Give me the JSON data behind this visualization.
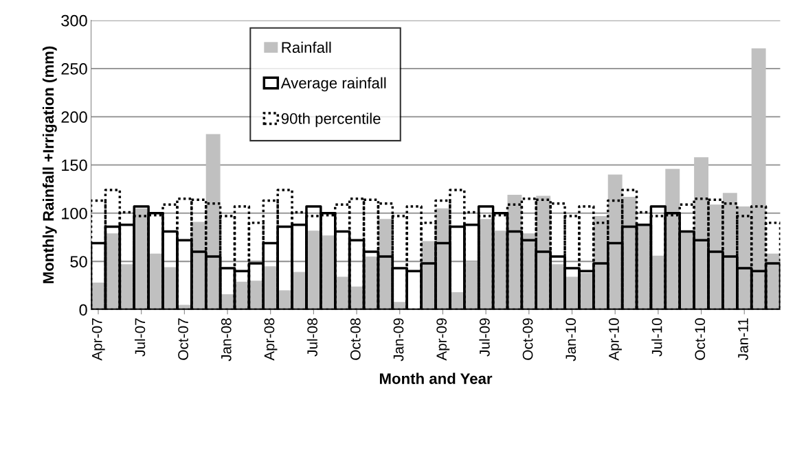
{
  "chart_data": {
    "type": "bar",
    "ylabel": "Monthly Rainfall +Irrigation (mm)",
    "xlabel": "Month and Year",
    "categories": [
      "Apr-07",
      null,
      null,
      "Jul-07",
      null,
      null,
      "Oct-07",
      null,
      null,
      "Jan-08",
      null,
      null,
      "Apr-08",
      null,
      null,
      "Jul-08",
      null,
      null,
      "Oct-08",
      null,
      null,
      "Jan-09",
      null,
      null,
      "Apr-09",
      null,
      null,
      "Jul-09",
      null,
      null,
      "Oct-09",
      null,
      null,
      "Jan-10",
      null,
      null,
      "Apr-10",
      null,
      null,
      "Jul-10",
      null,
      null,
      "Oct-10",
      null,
      null,
      "Jan-11",
      null,
      null
    ],
    "series": [
      {
        "name": "Rainfall",
        "color": "#c0c0c0",
        "values": [
          28,
          79,
          47,
          105,
          58,
          44,
          5,
          91,
          182,
          16,
          29,
          30,
          45,
          20,
          39,
          82,
          77,
          34,
          24,
          55,
          94,
          8,
          0,
          71,
          105,
          18,
          50,
          94,
          82,
          119,
          79,
          118,
          47,
          34,
          38,
          97,
          140,
          117,
          87,
          56,
          146,
          80,
          158,
          109,
          121,
          107,
          271,
          58
        ]
      },
      {
        "name": "Average rainfall",
        "color": "#000000",
        "line_style": "solid",
        "values": [
          69,
          86,
          88,
          107,
          100,
          81,
          72,
          60,
          55,
          43,
          40,
          48,
          69,
          86,
          88,
          107,
          100,
          81,
          72,
          60,
          55,
          43,
          40,
          48,
          69,
          86,
          88,
          107,
          100,
          81,
          72,
          60,
          55,
          43,
          40,
          48,
          69,
          86,
          88,
          107,
          100,
          81,
          72,
          60,
          55,
          43,
          40,
          48
        ]
      },
      {
        "name": "90th percentile",
        "color": "#000000",
        "line_style": "dotted",
        "values": [
          113,
          124,
          101,
          97,
          98,
          109,
          115,
          114,
          110,
          97,
          107,
          90,
          113,
          124,
          101,
          97,
          98,
          109,
          115,
          114,
          110,
          97,
          107,
          90,
          113,
          124,
          101,
          97,
          98,
          109,
          115,
          114,
          110,
          97,
          107,
          90,
          113,
          124,
          101,
          97,
          98,
          109,
          115,
          114,
          110,
          97,
          107,
          90
        ]
      }
    ],
    "ylim": [
      0,
      300
    ],
    "yticks": [
      0,
      50,
      100,
      150,
      200,
      250,
      300
    ],
    "grid": "y",
    "legend": "top left"
  }
}
